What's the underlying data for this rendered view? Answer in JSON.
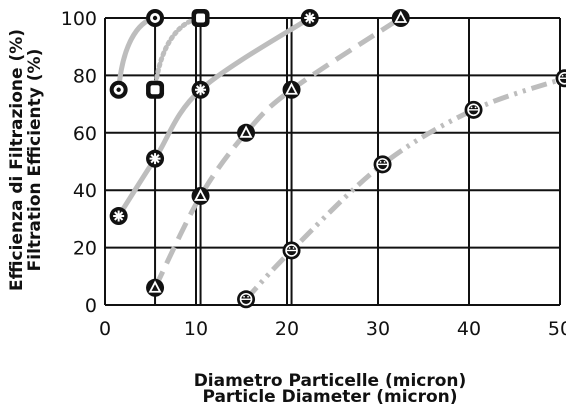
{
  "chart_data": {
    "type": "line",
    "title": "",
    "xlabel": [
      "Diametro Particelle (micron)",
      "Particle Diameter (micron)"
    ],
    "ylabel": [
      "Efficienza di Filtrazione (%)",
      "Filtration Efficienty (%)"
    ],
    "xlim": [
      0,
      50
    ],
    "ylim": [
      0,
      100
    ],
    "x_ticks": [
      "0",
      "10",
      "20",
      "30",
      "40",
      "50"
    ],
    "y_ticks": [
      "0",
      "20",
      "40",
      "60",
      "80",
      "100"
    ],
    "grid": true,
    "legend": "none",
    "series": [
      {
        "marker": "ring-dot",
        "line_style": "solid",
        "values_x": [
          1.5,
          5.5
        ],
        "values_y": [
          75,
          100
        ]
      },
      {
        "marker": "rounded-square",
        "line_style": "dotted",
        "values_x": [
          5.5,
          10.5
        ],
        "values_y": [
          75,
          100
        ]
      },
      {
        "marker": "asterisk",
        "line_style": "solid",
        "values_x": [
          1.5,
          5.5,
          10.5,
          22.5
        ],
        "values_y": [
          31,
          51,
          75,
          100
        ]
      },
      {
        "marker": "triangle",
        "line_style": "dashed",
        "values_x": [
          5.5,
          10.5,
          15.5,
          20.5,
          32.5
        ],
        "values_y": [
          6,
          38,
          60,
          75,
          100
        ]
      },
      {
        "marker": "face",
        "line_style": "dash-dot-dot",
        "values_x": [
          15.5,
          20.5,
          30.5,
          40.5,
          50.5
        ],
        "values_y": [
          2,
          19,
          49,
          68,
          79
        ]
      }
    ]
  },
  "colors": {
    "curve": "#bdbdbd",
    "grid": "#111111",
    "marker_fill": "#111111",
    "marker_symbol": "#ffffff"
  }
}
